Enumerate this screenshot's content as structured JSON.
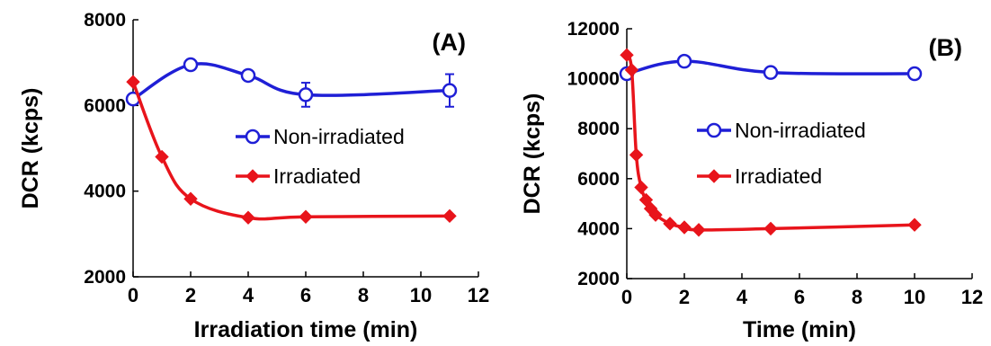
{
  "chart_data": [
    {
      "type": "line",
      "panel_label": "(A)",
      "xlabel": "Irradiation time (min)",
      "ylabel": "DCR (kcps)",
      "xlim": [
        0,
        12
      ],
      "ylim": [
        2000,
        8000
      ],
      "xticks": [
        0,
        2,
        4,
        6,
        8,
        10,
        12
      ],
      "yticks": [
        2000,
        4000,
        6000,
        8000
      ],
      "grid": false,
      "legend_position": "center-right",
      "series": [
        {
          "name": "Non-irradiated",
          "color": "#1f1fd6",
          "marker": "open-circle",
          "x": [
            0,
            2,
            4,
            6,
            11
          ],
          "y": [
            6150,
            6950,
            6700,
            6250,
            6350
          ],
          "yerr": [
            0,
            0,
            0,
            280,
            380
          ]
        },
        {
          "name": "Irradiated",
          "color": "#e8141b",
          "marker": "diamond",
          "x": [
            0,
            1,
            2,
            4,
            6,
            11
          ],
          "y": [
            6550,
            4800,
            3820,
            3380,
            3400,
            3420
          ],
          "yerr": [
            0,
            0,
            0,
            0,
            0,
            0
          ]
        }
      ]
    },
    {
      "type": "line",
      "panel_label": "(B)",
      "xlabel": "Time (min)",
      "ylabel": "DCR (kcps)",
      "xlim": [
        0,
        12
      ],
      "ylim": [
        2000,
        12000
      ],
      "xticks": [
        0,
        2,
        4,
        6,
        8,
        10,
        12
      ],
      "yticks": [
        2000,
        4000,
        6000,
        8000,
        10000,
        12000
      ],
      "grid": false,
      "legend_position": "center-right",
      "series": [
        {
          "name": "Non-irradiated",
          "color": "#1f1fd6",
          "marker": "open-circle",
          "x": [
            0,
            2,
            5,
            10
          ],
          "y": [
            10200,
            10700,
            10250,
            10200
          ],
          "yerr": [
            0,
            0,
            0,
            0
          ]
        },
        {
          "name": "Irradiated",
          "color": "#e8141b",
          "marker": "diamond",
          "x": [
            0,
            0.17,
            0.33,
            0.5,
            0.67,
            0.83,
            1,
            1.5,
            2,
            2.5,
            5,
            10
          ],
          "y": [
            10950,
            10350,
            6950,
            5650,
            5150,
            4800,
            4550,
            4200,
            4050,
            3950,
            4000,
            4150
          ],
          "yerr": [
            0,
            0,
            0,
            0,
            0,
            0,
            0,
            0,
            0,
            0,
            0,
            0
          ]
        }
      ]
    }
  ]
}
